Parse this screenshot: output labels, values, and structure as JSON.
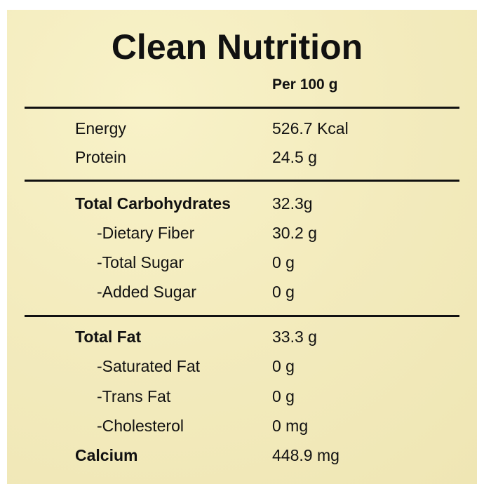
{
  "title": "Clean Nutrition",
  "column_header": "Per 100 g",
  "rows": [
    {
      "label": "Energy",
      "value": "526.7 Kcal"
    },
    {
      "label": "Protein",
      "value": "24.5 g"
    },
    {
      "label": "Total Carbohydrates",
      "value": "32.3g"
    },
    {
      "label": "-Dietary Fiber",
      "value": "30.2 g"
    },
    {
      "label": "-Total Sugar",
      "value": "0 g"
    },
    {
      "label": "-Added Sugar",
      "value": "0 g"
    },
    {
      "label": "Total Fat",
      "value": "33.3 g"
    },
    {
      "label": "-Saturated Fat",
      "value": "0 g"
    },
    {
      "label": "-Trans Fat",
      "value": "0 g"
    },
    {
      "label": "-Cholesterol",
      "value": "0 mg"
    },
    {
      "label": "Calcium",
      "value": "448.9 mg"
    }
  ]
}
